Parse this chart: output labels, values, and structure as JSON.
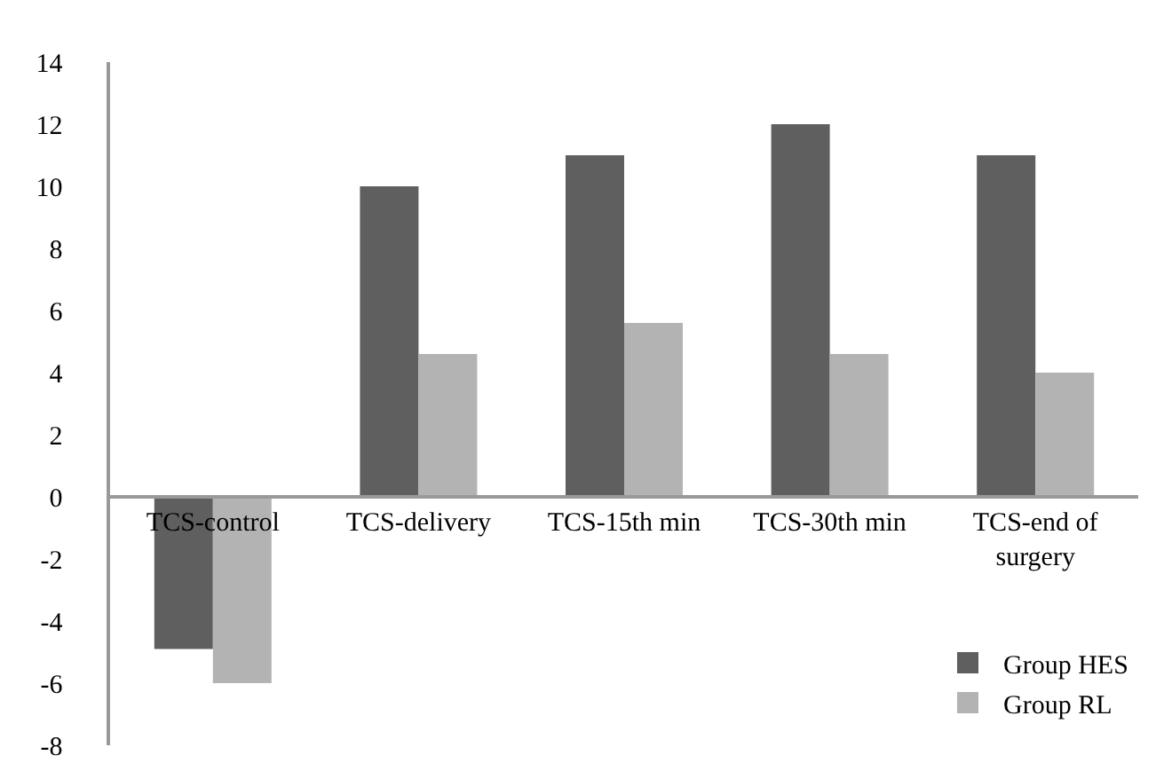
{
  "chart_data": {
    "type": "bar",
    "categories": [
      "TCS-control",
      "TCS-delivery",
      "TCS-15th min",
      "TCS-30th min",
      "TCS-end of surgery"
    ],
    "series": [
      {
        "name": "Group HES",
        "color": "#5f5f5f",
        "values": [
          -4.9,
          10,
          11,
          12,
          11
        ]
      },
      {
        "name": "Group RL",
        "color": "#b3b3b3",
        "values": [
          -6,
          4.6,
          5.6,
          4.6,
          4.0
        ]
      }
    ],
    "ylim": [
      -8,
      14
    ],
    "yticks": [
      -8,
      -6,
      -4,
      -2,
      0,
      2,
      4,
      6,
      8,
      10,
      12,
      14
    ],
    "grid": false,
    "legend": "bottom right"
  }
}
